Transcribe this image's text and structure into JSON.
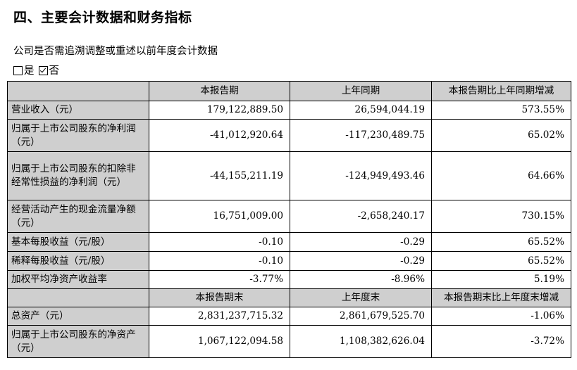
{
  "section_title": "四、主要会计数据和财务指标",
  "restatement_question": "公司是否需追溯调整或重述以前年度会计数据",
  "options": {
    "yes_label": "是",
    "no_label": "否",
    "selected": "否"
  },
  "table": {
    "header1": [
      "",
      "本报告期",
      "上年同期",
      "本报告期比上年同期增减"
    ],
    "rows1": [
      {
        "label": "营业收入（元）",
        "current": "179,122,889.50",
        "prior": "26,594,044.19",
        "change": "573.55%"
      },
      {
        "label": "归属于上市公司股东的净利润（元）",
        "current": "-41,012,920.64",
        "prior": "-117,230,489.75",
        "change": "65.02%"
      },
      {
        "label": "归属于上市公司股东的扣除非经常性损益的净利润（元）",
        "current": "-44,155,211.19",
        "prior": "-124,949,493.46",
        "change": "64.66%"
      },
      {
        "label": "经营活动产生的现金流量净额（元）",
        "current": "16,751,009.00",
        "prior": "-2,658,240.17",
        "change": "730.15%"
      },
      {
        "label": "基本每股收益（元/股）",
        "current": "-0.10",
        "prior": "-0.29",
        "change": "65.52%"
      },
      {
        "label": "稀释每股收益（元/股）",
        "current": "-0.10",
        "prior": "-0.29",
        "change": "65.52%"
      },
      {
        "label": "加权平均净资产收益率",
        "current": "-3.77%",
        "prior": "-8.96%",
        "change": "5.19%"
      }
    ],
    "header2": [
      "",
      "本报告期末",
      "上年度末",
      "本报告期末比上年度末增减"
    ],
    "rows2": [
      {
        "label": "总资产（元）",
        "current": "2,831,237,715.32",
        "prior": "2,861,679,525.70",
        "change": "-1.06%"
      },
      {
        "label": "归属于上市公司股东的净资产（元）",
        "current": "1,067,122,094.58",
        "prior": "1,108,382,626.04",
        "change": "-3.72%"
      }
    ]
  }
}
